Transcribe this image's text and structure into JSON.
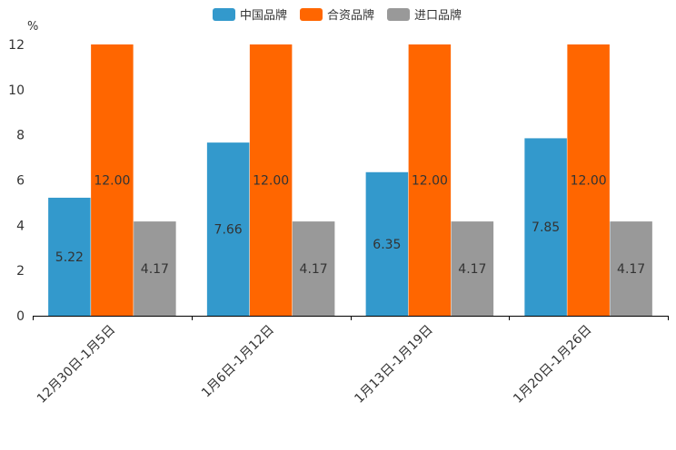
{
  "chart_data": {
    "type": "bar",
    "title": "",
    "unit_label": "%",
    "xlabel": "",
    "ylabel": "%",
    "ylim": [
      0,
      12
    ],
    "yticks": [
      0,
      2,
      4,
      6,
      8,
      10,
      12
    ],
    "categories": [
      "12月30日-1月5日",
      "1月6日-1月12日",
      "1月13日-1月19日",
      "1月20日-1月26日"
    ],
    "series": [
      {
        "name": "中国品牌",
        "color": "#3399CC",
        "values": [
          5.22,
          7.66,
          6.35,
          7.85
        ],
        "labels": [
          "5.22",
          "7.66",
          "6.35",
          "7.85"
        ]
      },
      {
        "name": "合资品牌",
        "color": "#FF6600",
        "values": [
          12.0,
          12.0,
          12.0,
          12.0
        ],
        "labels": [
          "12.00",
          "12.00",
          "12.00",
          "12.00"
        ]
      },
      {
        "name": "进口品牌",
        "color": "#999999",
        "values": [
          4.17,
          4.17,
          4.17,
          4.17
        ],
        "labels": [
          "4.17",
          "4.17",
          "4.17",
          "4.17"
        ]
      }
    ],
    "legend_position": "top-center",
    "grid": false
  }
}
